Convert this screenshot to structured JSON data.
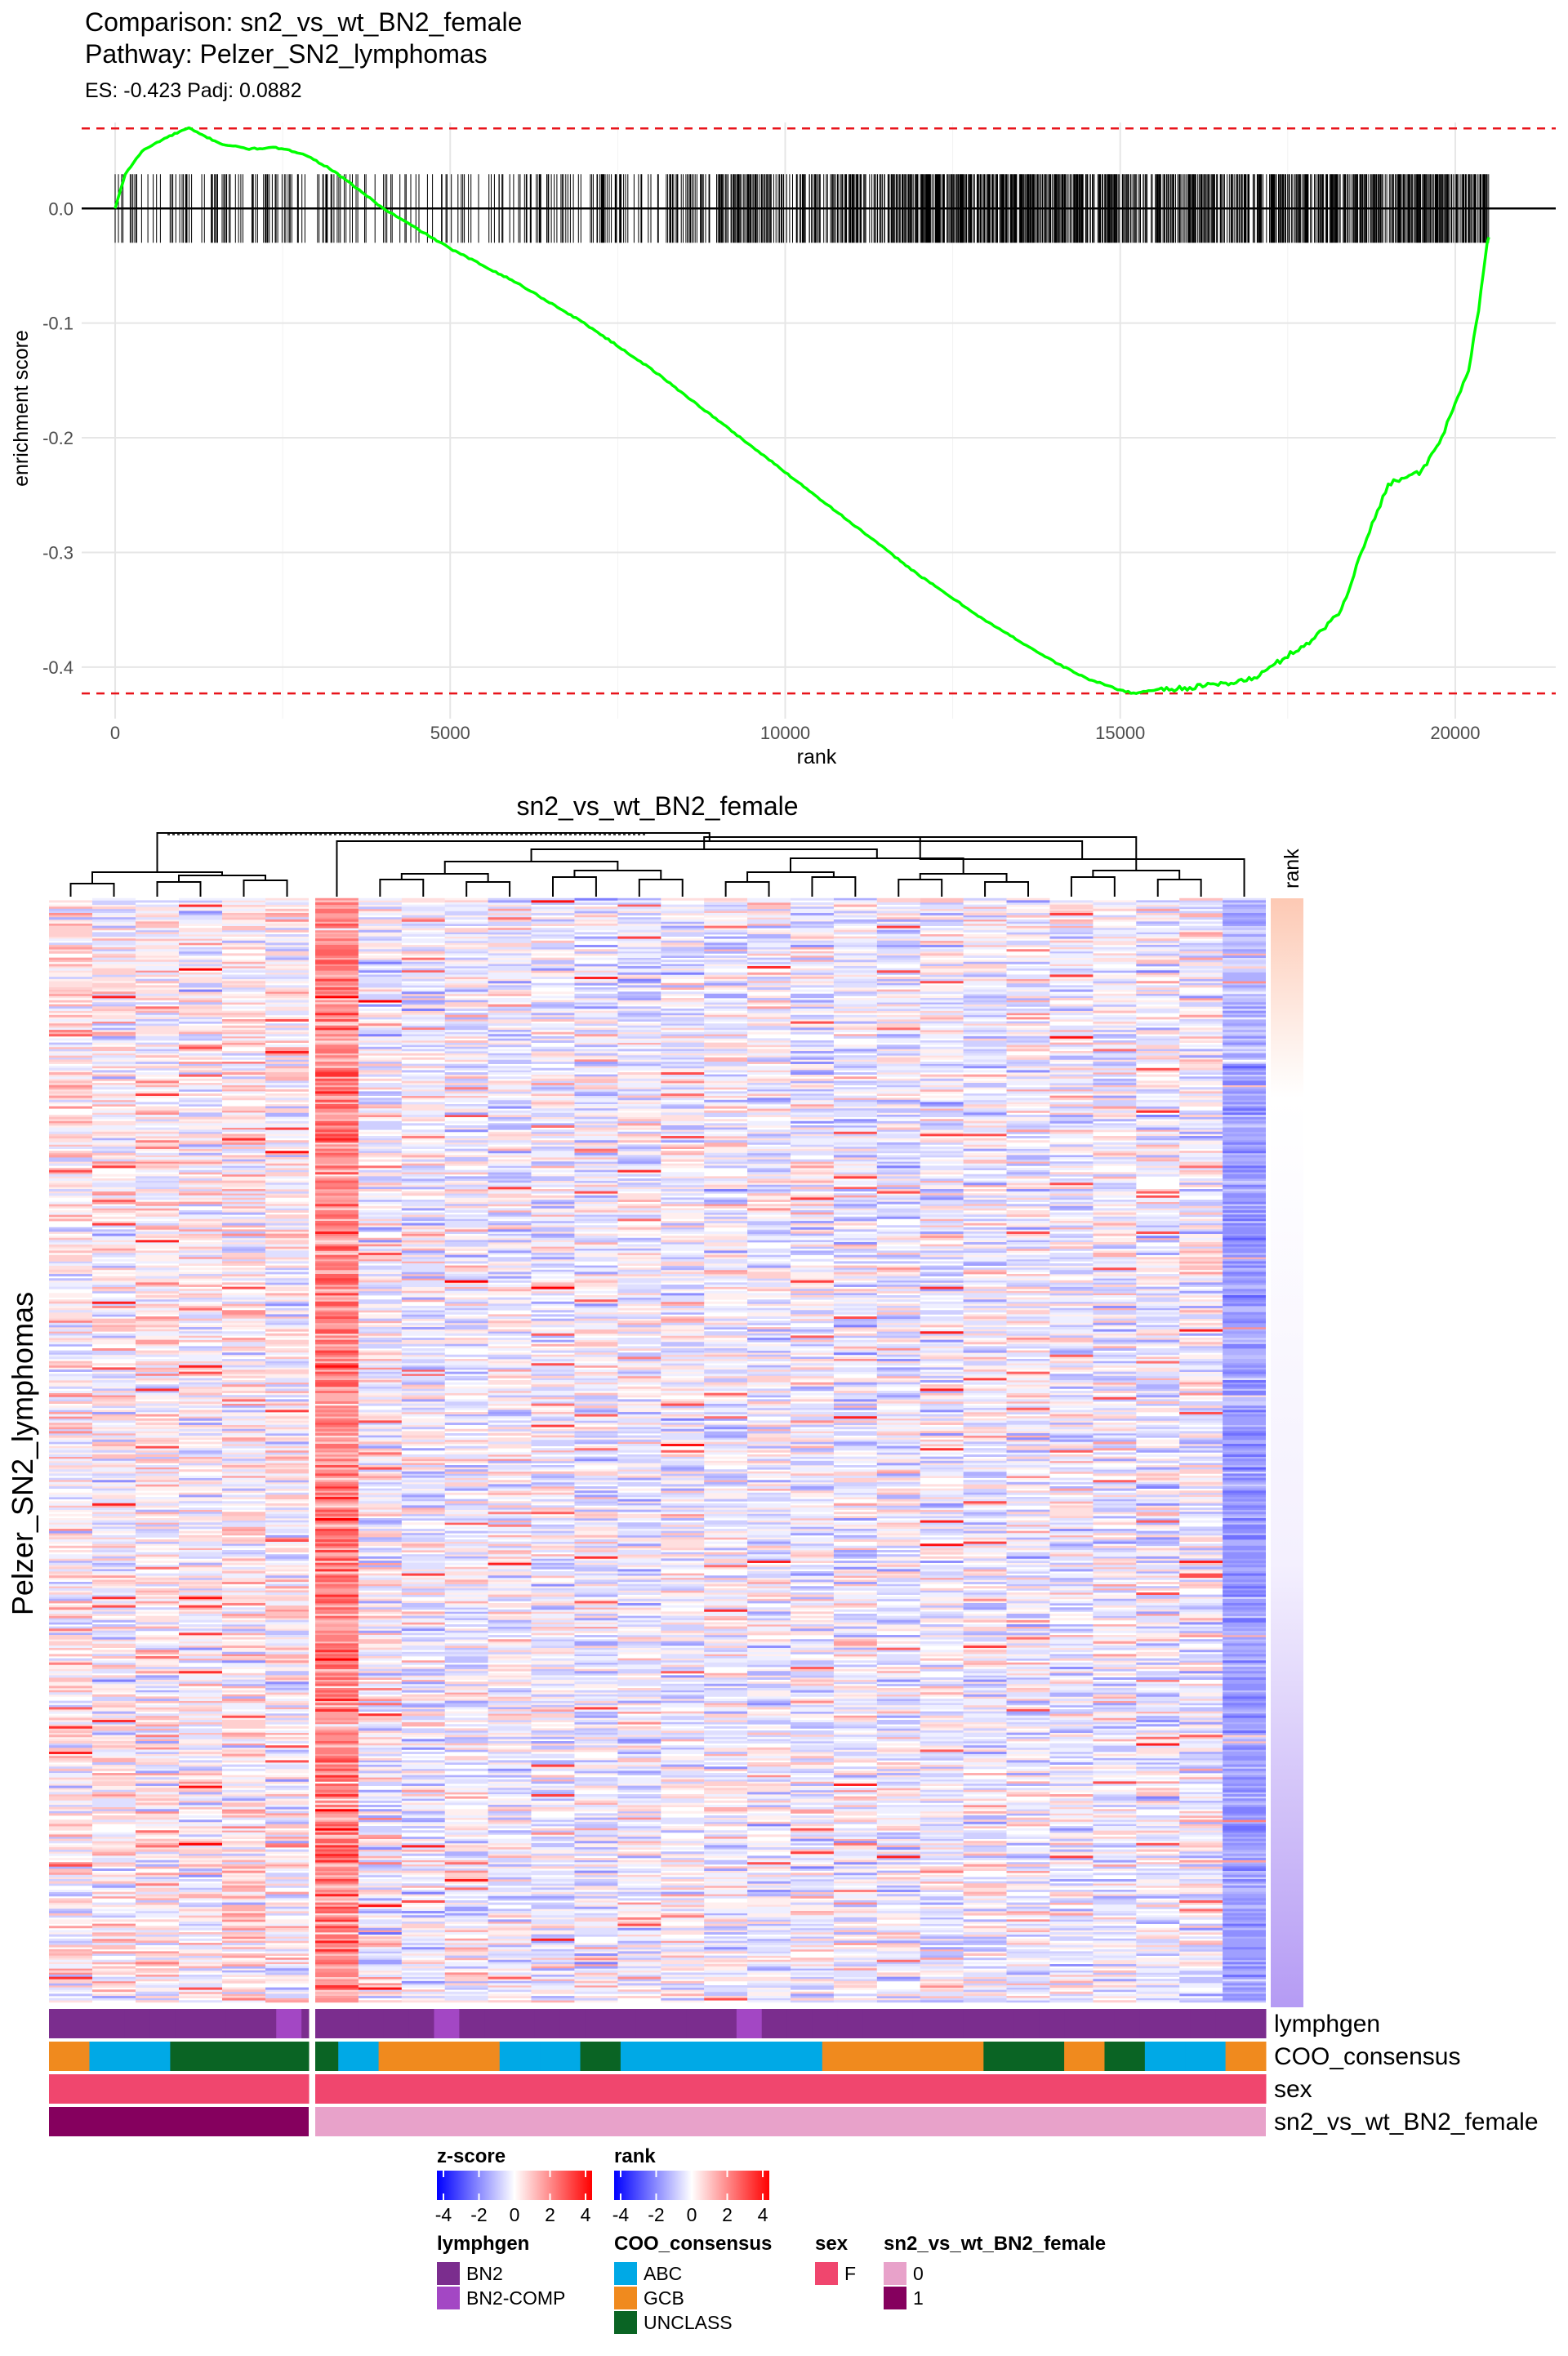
{
  "gsea": {
    "title_line1": "Comparison: sn2_vs_wt_BN2_female",
    "title_line2": "Pathway: Pelzer_SN2_lymphomas",
    "subtitle": "ES: -0.423 Padj: 0.0882"
  },
  "heatmap": {
    "title": "sn2_vs_wt_BN2_female",
    "row_title": "Pelzer_SN2_lymphomas",
    "rank_label": "rank"
  },
  "annotation_labels": [
    "lymphgen",
    "COO_consensus",
    "sex",
    "sn2_vs_wt_BN2_female"
  ],
  "legends": {
    "zscore": {
      "title": "z-score",
      "ticks": [
        "-4",
        "-2",
        "0",
        "2",
        "4"
      ]
    },
    "rank": {
      "title": "rank",
      "ticks": [
        "-4",
        "-2",
        "0",
        "2",
        "4"
      ]
    },
    "lymphgen": {
      "title": "lymphgen",
      "items": [
        {
          "label": "BN2",
          "color": "#7B2D8E"
        },
        {
          "label": "BN2-COMP",
          "color": "#A347C4"
        }
      ]
    },
    "coo": {
      "title": "COO_consensus",
      "items": [
        {
          "label": "ABC",
          "color": "#00A9E6"
        },
        {
          "label": "GCB",
          "color": "#F08A1E"
        },
        {
          "label": "UNCLASS",
          "color": "#0A6424"
        }
      ]
    },
    "sex": {
      "title": "sex",
      "items": [
        {
          "label": "F",
          "color": "#F0466E"
        }
      ]
    },
    "group": {
      "title": "sn2_vs_wt_BN2_female",
      "items": [
        {
          "label": "0",
          "color": "#E8A2CA"
        },
        {
          "label": "1",
          "color": "#85005E"
        }
      ]
    }
  },
  "colors": {
    "curve": "#00FF00",
    "es_lines": "#E8141B",
    "heat_low": "#0000FF",
    "heat_mid": "#FFFFFF",
    "heat_high": "#FF0000"
  },
  "samples": {
    "lymphgen": [
      "BN2",
      "BN2",
      "BN2",
      "BN2",
      "BN2",
      "BN2",
      "BN2",
      "BN2",
      "BN2",
      "BN2-COMP",
      "BN2",
      "BN2",
      "BN2",
      "BN2",
      "BN2",
      "BN2-COMP",
      "BN2",
      "BN2",
      "BN2",
      "BN2",
      "BN2",
      "BN2",
      "BN2",
      "BN2",
      "BN2",
      "BN2",
      "BN2",
      "BN2-COMP",
      "BN2",
      "BN2",
      "BN2",
      "BN2",
      "BN2",
      "BN2",
      "BN2",
      "BN2",
      "BN2",
      "BN2",
      "BN2",
      "BN2",
      "BN2",
      "BN2",
      "BN2",
      "BN2",
      "BN2",
      "BN2",
      "BN2",
      "BN2"
    ],
    "coo": [
      "GCB",
      "ABC",
      "ABC",
      "UNCLASS",
      "UNCLASS",
      "UNCLASS",
      "UNCLASS",
      "ABC",
      "GCB",
      "GCB",
      "GCB",
      "ABC",
      "ABC",
      "UNCLASS",
      "ABC",
      "ABC",
      "ABC",
      "ABC",
      "ABC",
      "GCB",
      "GCB",
      "GCB",
      "GCB",
      "UNCLASS",
      "UNCLASS",
      "GCB",
      "UNCLASS",
      "ABC",
      "ABC",
      "GCB"
    ],
    "sex": [
      "F"
    ],
    "group": [
      "1",
      "0"
    ]
  },
  "chart_data": [
    {
      "type": "line",
      "title": "Comparison: sn2_vs_wt_BN2_female",
      "subtitle": "Pathway: Pelzer_SN2_lymphomas",
      "xlabel": "rank",
      "ylabel": "enrichment score",
      "xlim": [
        -500,
        21500
      ],
      "ylim": [
        -0.445,
        0.075
      ],
      "xticks": [
        0,
        5000,
        10000,
        15000,
        20000
      ],
      "yticks": [
        0.0,
        -0.1,
        -0.2,
        -0.3,
        -0.4
      ],
      "ytick_labels": [
        "0.0",
        "-0.1",
        "-0.2",
        "-0.3",
        "-0.4"
      ],
      "grid": true,
      "hlines": [
        0.0698,
        -0.423
      ],
      "series": [
        {
          "x": [
            0,
            150,
            400,
            700,
            1000,
            1100,
            1300,
            1600,
            2000,
            2400,
            2800,
            3200,
            3600,
            4000,
            5000,
            6000,
            7000,
            8000,
            9000,
            10000,
            11000,
            12000,
            13000,
            14000,
            14500,
            15000,
            15200,
            15500,
            16000,
            16500,
            17000,
            17500,
            17900,
            18300,
            18600,
            18800,
            19000,
            19200,
            19500,
            19800,
            20000,
            20200,
            20350,
            20450,
            20500
          ],
          "y": [
            0.0,
            0.03,
            0.05,
            0.06,
            0.068,
            0.07,
            0.064,
            0.056,
            0.052,
            0.053,
            0.048,
            0.035,
            0.018,
            0.0,
            -0.035,
            -0.065,
            -0.1,
            -0.14,
            -0.185,
            -0.23,
            -0.275,
            -0.32,
            -0.36,
            -0.395,
            -0.41,
            -0.42,
            -0.423,
            -0.42,
            -0.418,
            -0.415,
            -0.41,
            -0.39,
            -0.375,
            -0.35,
            -0.3,
            -0.27,
            -0.24,
            -0.235,
            -0.23,
            -0.2,
            -0.17,
            -0.14,
            -0.09,
            -0.04,
            -0.025
          ]
        }
      ]
    }
  ]
}
